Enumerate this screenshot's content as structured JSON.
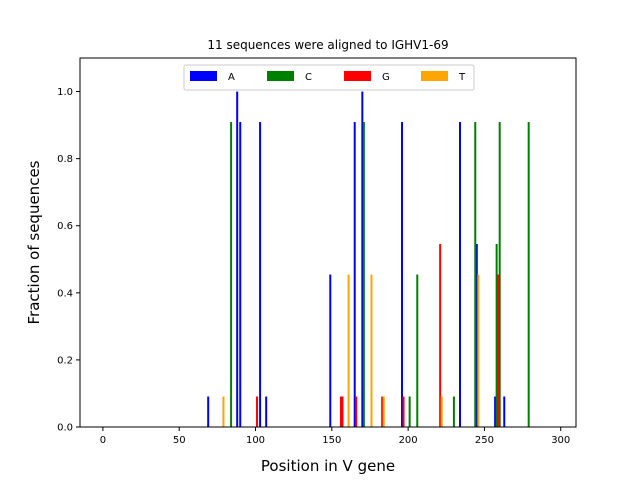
{
  "chart_data": {
    "type": "bar",
    "title": "11 sequences were aligned to IGHV1-69",
    "xlabel": "Position in V gene",
    "ylabel": "Fraction of sequences",
    "xlim": [
      -15,
      310
    ],
    "ylim": [
      0,
      1.1
    ],
    "xticks": [
      0,
      50,
      100,
      150,
      200,
      250,
      300
    ],
    "yticks": [
      0.0,
      0.2,
      0.4,
      0.6,
      0.8,
      1.0
    ],
    "legend_position": "top-center",
    "series": [
      {
        "name": "A",
        "color": "#0000ff",
        "points": [
          {
            "x": 69,
            "y": 0.0909
          },
          {
            "x": 88,
            "y": 1.0
          },
          {
            "x": 90,
            "y": 0.9091
          },
          {
            "x": 103,
            "y": 0.9091
          },
          {
            "x": 107,
            "y": 0.0909
          },
          {
            "x": 149,
            "y": 0.4545
          },
          {
            "x": 165,
            "y": 0.9091
          },
          {
            "x": 170,
            "y": 1.0
          },
          {
            "x": 196,
            "y": 0.9091
          },
          {
            "x": 234,
            "y": 0.9091
          },
          {
            "x": 245,
            "y": 0.5455
          },
          {
            "x": 257,
            "y": 0.0909
          },
          {
            "x": 263,
            "y": 0.0909
          }
        ]
      },
      {
        "name": "C",
        "color": "#008000",
        "points": [
          {
            "x": 84,
            "y": 0.9091
          },
          {
            "x": 171,
            "y": 0.9091
          },
          {
            "x": 201,
            "y": 0.0909
          },
          {
            "x": 206,
            "y": 0.4545
          },
          {
            "x": 230,
            "y": 0.0909
          },
          {
            "x": 244,
            "y": 0.9091
          },
          {
            "x": 258,
            "y": 0.5455
          },
          {
            "x": 260,
            "y": 0.9091
          },
          {
            "x": 279,
            "y": 0.9091
          }
        ]
      },
      {
        "name": "G",
        "color": "#ff0000",
        "points": [
          {
            "x": 101,
            "y": 0.0909
          },
          {
            "x": 156,
            "y": 0.0909
          },
          {
            "x": 157,
            "y": 0.0909
          },
          {
            "x": 166,
            "y": 0.0909
          },
          {
            "x": 183,
            "y": 0.0909
          },
          {
            "x": 197,
            "y": 0.0909
          },
          {
            "x": 221,
            "y": 0.5455
          },
          {
            "x": 259,
            "y": 0.4545
          }
        ]
      },
      {
        "name": "T",
        "color": "#ffa500",
        "points": [
          {
            "x": 79,
            "y": 0.0909
          },
          {
            "x": 161,
            "y": 0.4545
          },
          {
            "x": 176,
            "y": 0.4545
          },
          {
            "x": 184,
            "y": 0.0909
          },
          {
            "x": 222,
            "y": 0.0909
          },
          {
            "x": 246,
            "y": 0.4545
          }
        ]
      }
    ]
  }
}
